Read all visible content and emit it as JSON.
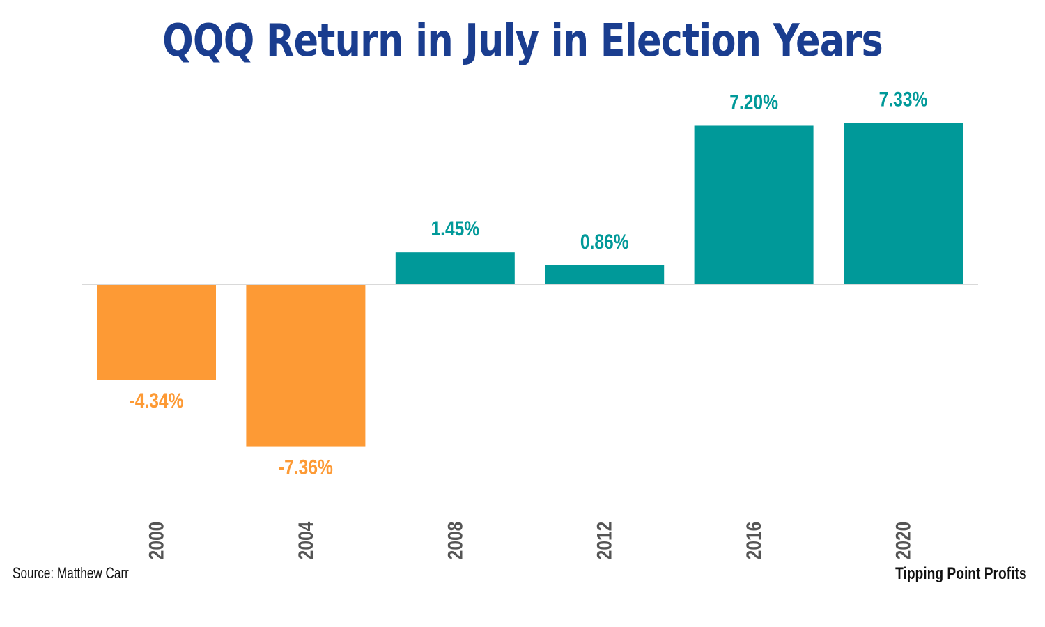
{
  "title": "QQQ Return in July in Election Years",
  "source": "Source: Matthew Carr",
  "brand": "Tipping Point Profits",
  "colors": {
    "title": "#1a3d8f",
    "positive": "#009999",
    "negative": "#fd9a35",
    "axis": "#d9d9d9",
    "tick_text": "#555555"
  },
  "chart_data": {
    "type": "bar",
    "title": "QQQ Return in July in Election Years",
    "categories": [
      "2000",
      "2004",
      "2008",
      "2012",
      "2016",
      "2020"
    ],
    "values": [
      -4.34,
      -7.36,
      1.45,
      0.86,
      7.2,
      7.33
    ],
    "data_labels": [
      "-4.34%",
      "-7.36%",
      "1.45%",
      "0.86%",
      "7.20%",
      "7.33%"
    ],
    "xlabel": "",
    "ylabel": "",
    "ylim": [
      -7.36,
      7.33
    ],
    "grid": false,
    "legend": "none",
    "tick_label_orientation": "vertical"
  }
}
